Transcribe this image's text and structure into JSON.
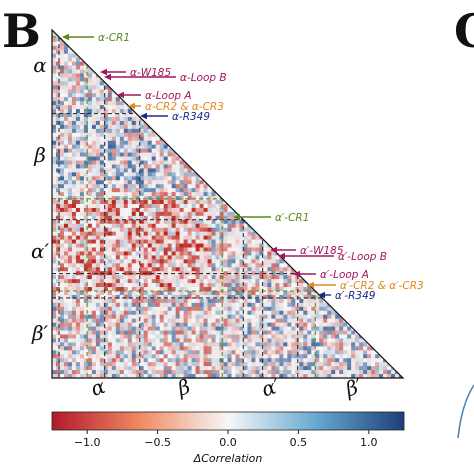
{
  "panel": {
    "letter": "B",
    "next_letter": "C"
  },
  "chart_data": {
    "type": "heatmap",
    "description_shape": "lower-triangular",
    "row_labels": [
      "α",
      "β",
      "α′",
      "β′"
    ],
    "col_labels": [
      "α",
      "β",
      "α′",
      "β′"
    ],
    "colormap": {
      "low": "#c0281f",
      "mid": "#f7f7f7",
      "high": "#1d4e8c"
    },
    "colorbar": {
      "label": "ΔCorrelation",
      "min": -1.25,
      "max": 1.25,
      "ticks": [
        -1.0,
        -0.5,
        0.0,
        0.5,
        1.0
      ],
      "tick_labels": [
        "−1.0",
        "−0.5",
        "0.0",
        "0.5",
        "1.0"
      ]
    },
    "annotations": [
      {
        "text": "α-CR1",
        "color": "#5a8a1a"
      },
      {
        "text": "α-W185",
        "color": "#a0185e"
      },
      {
        "text": "α-Loop B",
        "color": "#a0185e"
      },
      {
        "text": "α-Loop A",
        "color": "#a0185e"
      },
      {
        "text": "α-CR2 & α-CR3",
        "color": "#e08a1a"
      },
      {
        "text": "α-R349",
        "color": "#1c2a8a"
      },
      {
        "text": "α′-CR1",
        "color": "#5a8a1a"
      },
      {
        "text": "α′-W185",
        "color": "#a0185e"
      },
      {
        "text": "α′-Loop B",
        "color": "#a0185e"
      },
      {
        "text": "α′-Loop A",
        "color": "#a0185e"
      },
      {
        "text": "α′-CR2 & α′-CR3",
        "color": "#e08a1a"
      },
      {
        "text": "α′-R349",
        "color": "#1c2a8a"
      }
    ]
  }
}
